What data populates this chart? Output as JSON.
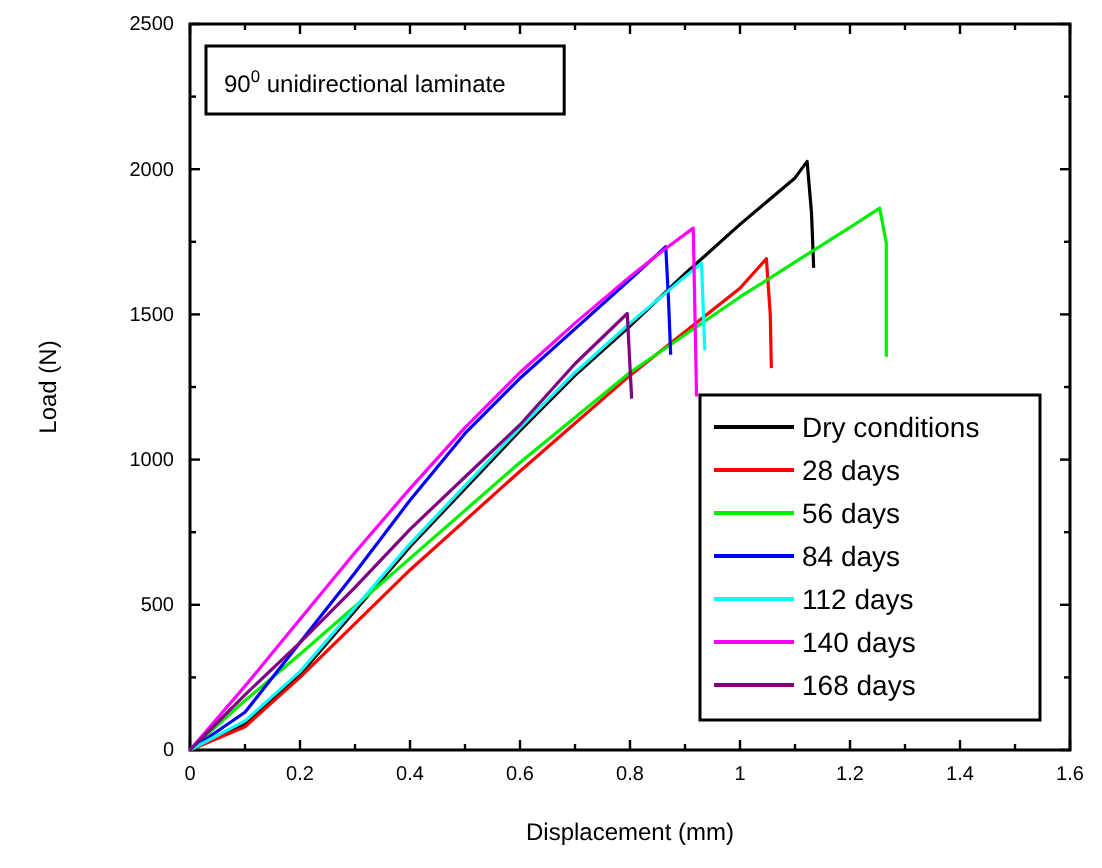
{
  "chart_data": {
    "type": "line",
    "xlabel": "Displacement (mm)",
    "ylabel": "Load (N)",
    "annotations": [
      "90$^{0}$ unidirectional laminate"
    ],
    "xlim": [
      0,
      1.6
    ],
    "xticks": [
      0,
      {
        "value": 0.1,
        "label": null
      },
      0.2,
      {
        "value": 0.3,
        "label": null
      },
      0.4,
      {
        "value": 0.5,
        "label": null
      },
      0.6,
      {
        "value": 0.7,
        "label": null
      },
      0.8,
      {
        "value": 0.9,
        "label": null
      },
      1.0,
      {
        "value": 1.1,
        "label": null
      },
      1.2,
      {
        "value": 1.3,
        "label": null
      },
      1.4,
      {
        "value": 1.5,
        "label": null
      },
      1.6
    ],
    "ylim": [
      0,
      2500
    ],
    "yticks": [
      0,
      {
        "value": 250,
        "label": null
      },
      500,
      {
        "value": 750,
        "label": null
      },
      1000,
      {
        "value": 1250,
        "label": null
      },
      1500,
      {
        "value": 1750,
        "label": null
      },
      2000,
      {
        "value": 2250,
        "label": null
      },
      2500
    ],
    "grid": false,
    "legend": "bottom right",
    "marker": "none",
    "line_style": "solid",
    "series": [
      {
        "name": "Dry conditions",
        "color": "#000000",
        "x": [
          0,
          0.1,
          0.2,
          0.3,
          0.4,
          0.5,
          0.6,
          0.7,
          0.8,
          0.9,
          1.0,
          1.1,
          1.122,
          1.13,
          1.134
        ],
        "values": [
          0,
          90,
          260,
          480,
          700,
          900,
          1100,
          1290,
          1460,
          1640,
          1810,
          1970,
          2027,
          1850,
          1660
        ]
      },
      {
        "name": "28 days",
        "color": "#ff0000",
        "x": [
          0,
          0.1,
          0.2,
          0.4,
          0.6,
          0.8,
          0.9,
          1.0,
          1.048,
          1.055,
          1.057
        ],
        "values": [
          0,
          80,
          250,
          620,
          960,
          1290,
          1440,
          1590,
          1692,
          1500,
          1315
        ]
      },
      {
        "name": "56 days",
        "color": "#00ee00",
        "x": [
          0,
          0.1,
          0.2,
          0.4,
          0.6,
          0.8,
          1.0,
          1.1,
          1.2,
          1.254,
          1.266,
          1.266
        ],
        "values": [
          0,
          170,
          330,
          660,
          990,
          1300,
          1560,
          1680,
          1800,
          1866,
          1745,
          1354
        ]
      },
      {
        "name": "84 days",
        "color": "#0000ff",
        "x": [
          0,
          0.1,
          0.2,
          0.3,
          0.4,
          0.5,
          0.6,
          0.7,
          0.8,
          0.865,
          0.87,
          0.874
        ],
        "values": [
          0,
          130,
          370,
          610,
          860,
          1090,
          1280,
          1450,
          1620,
          1733,
          1550,
          1361
        ]
      },
      {
        "name": "112 days",
        "color": "#00ffff",
        "x": [
          0,
          0.1,
          0.2,
          0.3,
          0.4,
          0.5,
          0.6,
          0.7,
          0.8,
          0.9,
          0.93,
          0.936
        ],
        "values": [
          0,
          100,
          270,
          490,
          710,
          910,
          1110,
          1300,
          1470,
          1630,
          1676,
          1377
        ]
      },
      {
        "name": "140 days",
        "color": "#ff00ff",
        "x": [
          0,
          0.1,
          0.2,
          0.3,
          0.4,
          0.5,
          0.6,
          0.7,
          0.8,
          0.86,
          0.915,
          0.921
        ],
        "values": [
          0,
          220,
          450,
          680,
          900,
          1110,
          1300,
          1470,
          1630,
          1720,
          1797,
          1217
        ]
      },
      {
        "name": "168 days",
        "color": "#800080",
        "x": [
          0,
          0.1,
          0.2,
          0.3,
          0.4,
          0.5,
          0.6,
          0.7,
          0.795,
          0.803
        ],
        "values": [
          0,
          190,
          370,
          560,
          760,
          940,
          1120,
          1330,
          1503,
          1210
        ]
      }
    ]
  }
}
